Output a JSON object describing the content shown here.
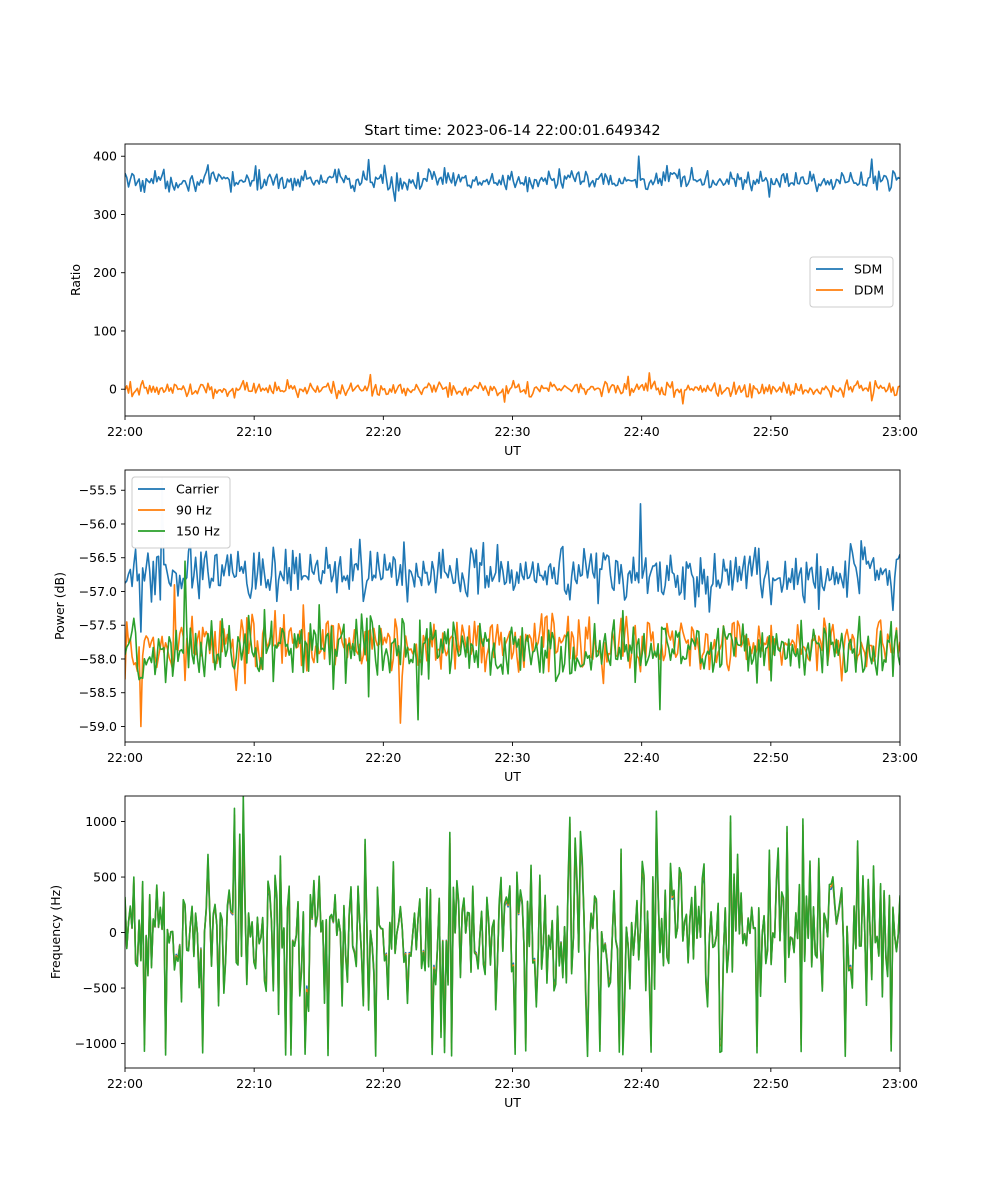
{
  "title": "Start time: 2023-06-14 22:00:01.649342",
  "colors": {
    "blue": "#1f77b4",
    "orange": "#ff7f0e",
    "green": "#2ca02c"
  },
  "chart_data": [
    {
      "type": "line",
      "xlabel": "UT",
      "ylabel": "Ratio",
      "x_range": [
        "22:00",
        "23:00"
      ],
      "x_tick_labels": [
        "22:00",
        "22:10",
        "22:20",
        "22:30",
        "22:40",
        "22:50",
        "23:00"
      ],
      "ylim": [
        -46,
        421
      ],
      "y_ticks": [
        0,
        100,
        200,
        300,
        400
      ],
      "y_tick_labels": [
        "0",
        "100",
        "200",
        "300",
        "400"
      ],
      "legend_position": "center-right",
      "grid": false,
      "series": [
        {
          "name": "SDM",
          "color": "#1f77b4",
          "mean": 358,
          "spread": 13,
          "spikes_up": [
            400,
            395,
            394
          ],
          "spikes_down": [
            323,
            330
          ]
        },
        {
          "name": "DDM",
          "color": "#ff7f0e",
          "mean": 0,
          "spread": 9,
          "spikes_up": [
            28,
            25,
            22
          ],
          "spikes_down": [
            -25,
            -22
          ]
        }
      ]
    },
    {
      "type": "line",
      "xlabel": "UT",
      "ylabel": "Power (dB)",
      "x_range": [
        "22:00",
        "23:00"
      ],
      "x_tick_labels": [
        "22:00",
        "22:10",
        "22:20",
        "22:30",
        "22:40",
        "22:50",
        "23:00"
      ],
      "ylim": [
        -59.23,
        -55.2
      ],
      "y_ticks": [
        -59.0,
        -58.5,
        -58.0,
        -57.5,
        -57.0,
        -56.5,
        -56.0,
        -55.5
      ],
      "y_tick_labels": [
        "−59.0",
        "−58.5",
        "−58.0",
        "−57.5",
        "−57.0",
        "−56.5",
        "−56.0",
        "−55.5"
      ],
      "legend_position": "top-left",
      "grid": false,
      "series": [
        {
          "name": "Carrier",
          "color": "#1f77b4",
          "mean": -56.75,
          "spread": 0.28,
          "spikes_up": [
            -55.32,
            -55.7
          ],
          "spikes_down": [
            -57.6
          ]
        },
        {
          "name": "90 Hz",
          "color": "#ff7f0e",
          "mean": -57.8,
          "spread": 0.32,
          "spikes_up": [
            -56.9
          ],
          "spikes_down": [
            -59.0,
            -58.95
          ]
        },
        {
          "name": "150 Hz",
          "color": "#2ca02c",
          "mean": -57.85,
          "spread": 0.33,
          "spikes_up": [
            -56.55
          ],
          "spikes_down": [
            -58.9,
            -58.75
          ]
        }
      ]
    },
    {
      "type": "line",
      "xlabel": "UT",
      "ylabel": "Frequency (Hz)",
      "x_range": [
        "22:00",
        "23:00"
      ],
      "x_tick_labels": [
        "22:00",
        "22:10",
        "22:20",
        "22:30",
        "22:40",
        "22:50",
        "23:00"
      ],
      "ylim": [
        -1220,
        1230
      ],
      "y_ticks": [
        -1000,
        -500,
        0,
        500,
        1000
      ],
      "y_tick_labels": [
        "−1000",
        "−500",
        "0",
        "500",
        "1000"
      ],
      "legend_position": "top-left",
      "grid": false,
      "series": [
        {
          "name": "Carrier",
          "color": "#1f77b4",
          "range": [
            -1100,
            1000
          ]
        },
        {
          "name": "90 Hz",
          "color": "#ff7f0e",
          "range": [
            -1000,
            1100
          ]
        },
        {
          "name": "150 Hz",
          "color": "#2ca02c",
          "range": [
            -950,
            1230
          ]
        }
      ]
    }
  ]
}
